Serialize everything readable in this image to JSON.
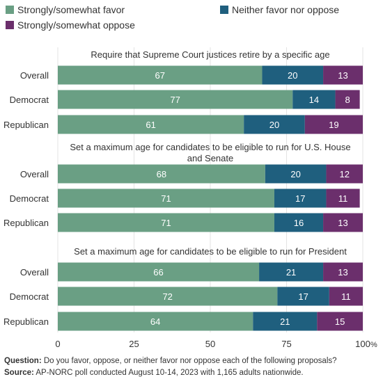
{
  "legend": {
    "items": [
      {
        "label": "Strongly/somewhat favor",
        "color": "#6a9f84"
      },
      {
        "label": "Neither favor nor oppose",
        "color": "#1f5f7e"
      },
      {
        "label": "Strongly/somewhat oppose",
        "color": "#6b2f6c"
      }
    ]
  },
  "footer": {
    "question_label": "Question:",
    "question_text": " Do you favor, oppose, or neither favor nor oppose each of the following proposals?",
    "source_label": "Source:",
    "source_text": " AP-NORC poll conducted August 10-14, 2023 with 1,165 adults nationwide."
  },
  "chart_data": {
    "type": "bar",
    "orientation": "horizontal",
    "stacked": true,
    "xlim": [
      0,
      100
    ],
    "xticks": [
      0,
      25,
      50,
      75,
      100
    ],
    "x_unit": "%",
    "grid": true,
    "legend_position": "top",
    "categories": [
      "Overall",
      "Democrat",
      "Republican"
    ],
    "series_names": [
      "Strongly/somewhat favor",
      "Neither favor nor oppose",
      "Strongly/somewhat oppose"
    ],
    "colors": [
      "#6a9f84",
      "#1f5f7e",
      "#6b2f6c"
    ],
    "panels": [
      {
        "title_lines": [
          "Require that Supreme Court justices retire by a specific age"
        ],
        "values": [
          [
            67,
            20,
            13
          ],
          [
            77,
            14,
            8
          ],
          [
            61,
            20,
            19
          ]
        ]
      },
      {
        "title_lines": [
          "Set a maximum age for candidates to be eligible to run for U.S. House",
          "and Senate"
        ],
        "values": [
          [
            68,
            20,
            12
          ],
          [
            71,
            17,
            11
          ],
          [
            71,
            16,
            13
          ]
        ]
      },
      {
        "title_lines": [
          "Set a maximum age for candidates to be eligible to run for President"
        ],
        "values": [
          [
            66,
            21,
            13
          ],
          [
            72,
            17,
            11
          ],
          [
            64,
            21,
            15
          ]
        ]
      }
    ]
  }
}
